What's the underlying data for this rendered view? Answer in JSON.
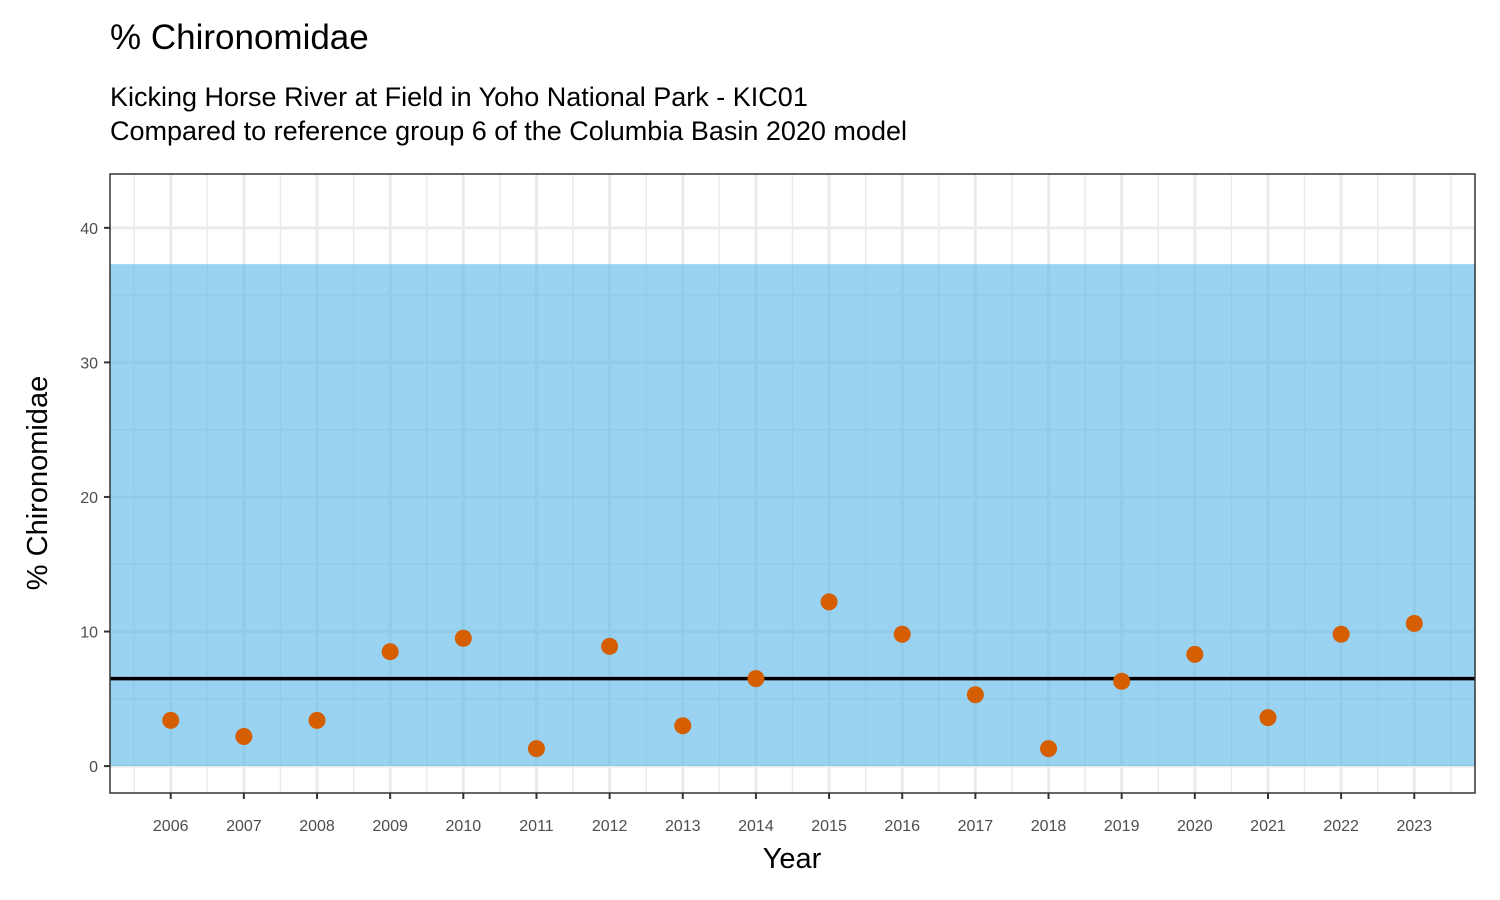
{
  "chart_data": {
    "type": "scatter",
    "title": "% Chironomidae",
    "subtitle_lines": [
      "Kicking Horse River at Field in Yoho National Park - KIC01",
      "Compared to reference group 6 of the Columbia Basin 2020 model"
    ],
    "xlabel": "Year",
    "ylabel": "% Chironomidae",
    "x": [
      2006,
      2007,
      2008,
      2009,
      2010,
      2011,
      2012,
      2013,
      2014,
      2015,
      2016,
      2017,
      2018,
      2019,
      2020,
      2021,
      2022,
      2023
    ],
    "y": [
      3.4,
      2.2,
      3.4,
      8.5,
      9.5,
      1.3,
      8.9,
      3.0,
      6.5,
      12.2,
      9.8,
      5.3,
      1.3,
      6.3,
      8.3,
      3.6,
      9.8,
      10.6
    ],
    "reference_line": 6.5,
    "reference_band": [
      0,
      37.3
    ],
    "xlim": [
      2005.17,
      2023.83
    ],
    "ylim": [
      -2,
      44
    ],
    "yticks": [
      0,
      10,
      20,
      30,
      40
    ],
    "grid": true,
    "colors": {
      "point": "#D55E00",
      "band": "#56B4E9",
      "line": "#000000"
    }
  }
}
